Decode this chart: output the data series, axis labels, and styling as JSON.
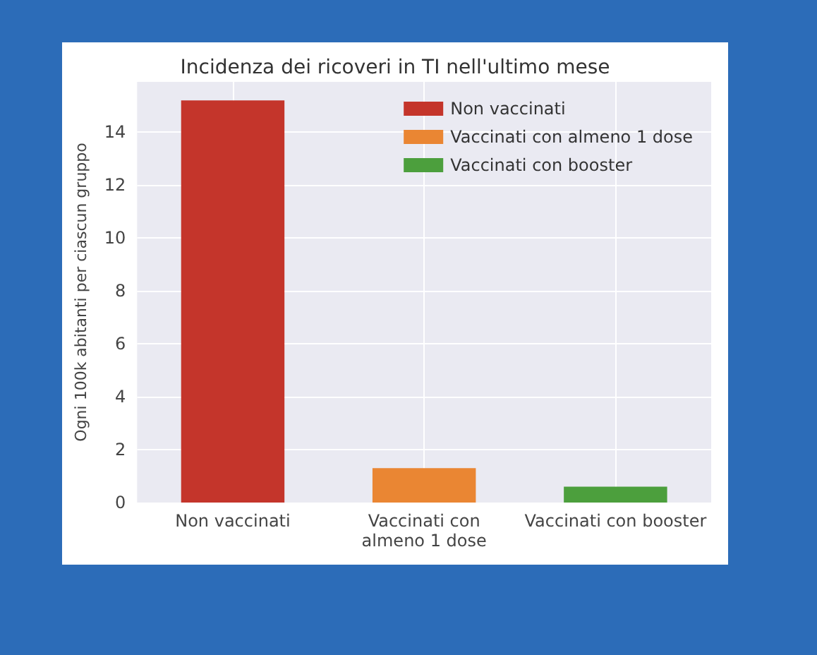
{
  "chart_data": {
    "type": "bar",
    "title": "Incidenza dei ricoveri in TI nell'ultimo mese",
    "ylabel": "Ogni 100k abitanti per ciascun gruppo",
    "categories": [
      "Non vaccinati",
      "Vaccinati con\nalmeno 1 dose",
      "Vaccinati con booster"
    ],
    "series": [
      {
        "name": "Non vaccinati",
        "color": "#c4352b",
        "values": [
          15.2,
          null,
          null
        ]
      },
      {
        "name": "Vaccinati con almeno 1 dose",
        "color": "#ea8633",
        "values": [
          null,
          1.3,
          null
        ]
      },
      {
        "name": "Vaccinati con booster",
        "color": "#4c9f3d",
        "values": [
          null,
          null,
          0.6
        ]
      }
    ],
    "ylim": [
      0,
      15.9
    ],
    "yticks": [
      0,
      2,
      4,
      6,
      8,
      10,
      12,
      14
    ],
    "grid": true,
    "legend": "top right"
  }
}
